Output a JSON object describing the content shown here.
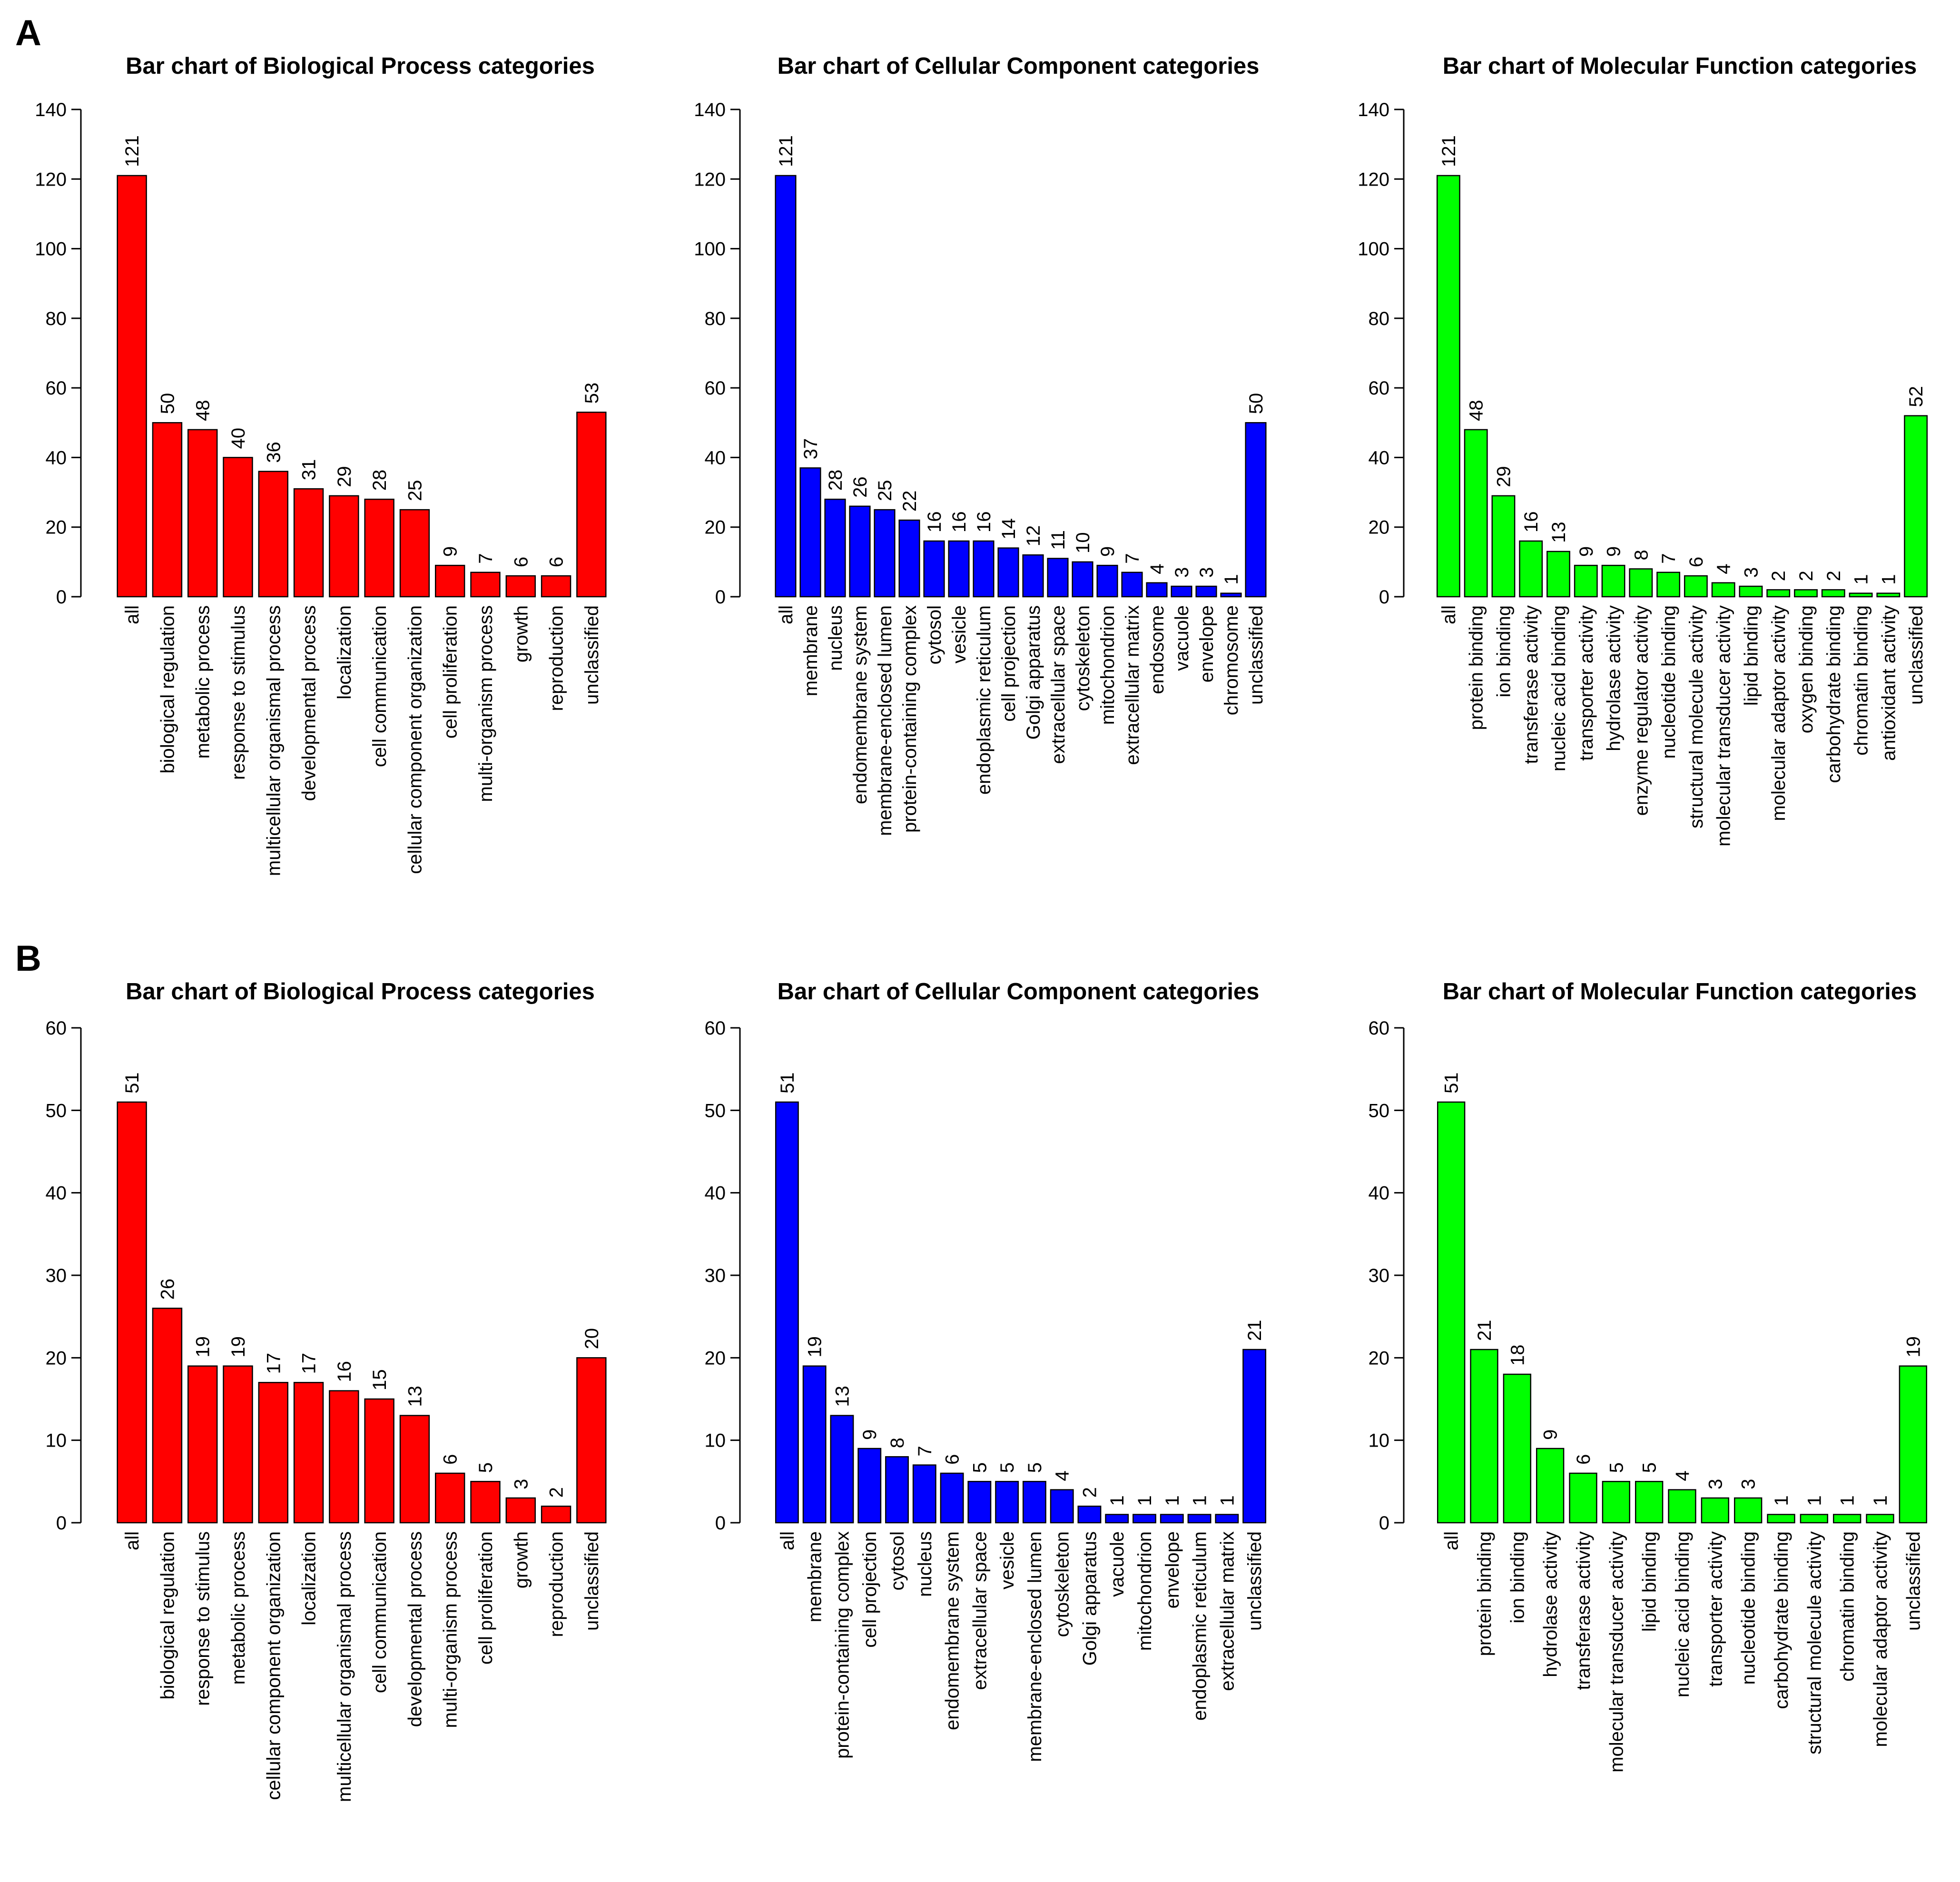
{
  "panels": [
    {
      "label": "A",
      "charts": [
        0,
        1,
        2
      ]
    },
    {
      "label": "B",
      "charts": [
        3,
        4,
        5
      ]
    }
  ],
  "chart_data": [
    {
      "type": "bar",
      "title": "Bar chart of Biological Process categories",
      "color": "#ff0000",
      "ylim": [
        0,
        140
      ],
      "yticks": [
        0,
        20,
        40,
        60,
        80,
        100,
        120,
        140
      ],
      "categories": [
        "all",
        "biological regulation",
        "metabolic process",
        "response to stimulus",
        "multicellular organismal process",
        "developmental process",
        "localization",
        "cell communication",
        "cellular component organization",
        "cell proliferation",
        "multi-organism process",
        "growth",
        "reproduction",
        "unclassified"
      ],
      "values": [
        121,
        50,
        48,
        40,
        36,
        31,
        29,
        28,
        25,
        9,
        7,
        6,
        6,
        53
      ],
      "xlabel": "",
      "ylabel": ""
    },
    {
      "type": "bar",
      "title": "Bar chart of Cellular Component categories",
      "color": "#0000ff",
      "ylim": [
        0,
        140
      ],
      "yticks": [
        0,
        20,
        40,
        60,
        80,
        100,
        120,
        140
      ],
      "categories": [
        "all",
        "membrane",
        "nucleus",
        "endomembrane system",
        "membrane-enclosed lumen",
        "protein-containing complex",
        "cytosol",
        "vesicle",
        "endoplasmic reticulum",
        "cell projection",
        "Golgi apparatus",
        "extracellular space",
        "cytoskeleton",
        "mitochondrion",
        "extracellular matrix",
        "endosome",
        "vacuole",
        "envelope",
        "chromosome",
        "unclassified"
      ],
      "values": [
        121,
        37,
        28,
        26,
        25,
        22,
        16,
        16,
        16,
        14,
        12,
        11,
        10,
        9,
        7,
        4,
        3,
        3,
        1,
        50
      ],
      "xlabel": "",
      "ylabel": ""
    },
    {
      "type": "bar",
      "title": "Bar chart of Molecular Function categories",
      "color": "#00ff00",
      "ylim": [
        0,
        140
      ],
      "yticks": [
        0,
        20,
        40,
        60,
        80,
        100,
        120,
        140
      ],
      "categories": [
        "all",
        "protein binding",
        "ion binding",
        "transferase activity",
        "nucleic acid binding",
        "transporter activity",
        "hydrolase activity",
        "enzyme regulator activity",
        "nucleotide binding",
        "structural molecule activity",
        "molecular transducer activity",
        "lipid binding",
        "molecular adaptor activity",
        "oxygen binding",
        "carbohydrate binding",
        "chromatin binding",
        "antioxidant activity",
        "unclassified"
      ],
      "values": [
        121,
        48,
        29,
        16,
        13,
        9,
        9,
        8,
        7,
        6,
        4,
        3,
        2,
        2,
        2,
        1,
        1,
        52
      ],
      "xlabel": "",
      "ylabel": ""
    },
    {
      "type": "bar",
      "title": "Bar chart of Biological Process categories",
      "color": "#ff0000",
      "ylim": [
        0,
        60
      ],
      "yticks": [
        0,
        10,
        20,
        30,
        40,
        50,
        60
      ],
      "categories": [
        "all",
        "biological regulation",
        "response to stimulus",
        "metabolic process",
        "cellular component organization",
        "localization",
        "multicellular organismal process",
        "cell communication",
        "developmental process",
        "multi-organism process",
        "cell proliferation",
        "growth",
        "reproduction",
        "unclassified"
      ],
      "values": [
        51,
        26,
        19,
        19,
        17,
        17,
        16,
        15,
        13,
        6,
        5,
        3,
        2,
        20
      ],
      "xlabel": "",
      "ylabel": ""
    },
    {
      "type": "bar",
      "title": "Bar chart of Cellular Component categories",
      "color": "#0000ff",
      "ylim": [
        0,
        60
      ],
      "yticks": [
        0,
        10,
        20,
        30,
        40,
        50,
        60
      ],
      "categories": [
        "all",
        "membrane",
        "protein-containing complex",
        "cell projection",
        "cytosol",
        "nucleus",
        "endomembrane system",
        "extracellular space",
        "vesicle",
        "membrane-enclosed lumen",
        "cytoskeleton",
        "Golgi apparatus",
        "vacuole",
        "mitochondrion",
        "envelope",
        "endoplasmic reticulum",
        "extracellular matrix",
        "unclassified"
      ],
      "values": [
        51,
        19,
        13,
        9,
        8,
        7,
        6,
        5,
        5,
        5,
        4,
        2,
        1,
        1,
        1,
        1,
        1,
        21
      ],
      "xlabel": "",
      "ylabel": ""
    },
    {
      "type": "bar",
      "title": "Bar chart of Molecular Function categories",
      "color": "#00ff00",
      "ylim": [
        0,
        60
      ],
      "yticks": [
        0,
        10,
        20,
        30,
        40,
        50,
        60
      ],
      "categories": [
        "all",
        "protein binding",
        "ion binding",
        "hydrolase activity",
        "transferase activity",
        "molecular transducer activity",
        "lipid binding",
        "nucleic acid binding",
        "transporter activity",
        "nucleotide binding",
        "carbohydrate binding",
        "structural molecule activity",
        "chromatin binding",
        "molecular adaptor activity",
        "unclassified"
      ],
      "values": [
        51,
        21,
        18,
        9,
        6,
        5,
        5,
        4,
        3,
        3,
        1,
        1,
        1,
        1,
        19
      ],
      "xlabel": "",
      "ylabel": ""
    }
  ]
}
